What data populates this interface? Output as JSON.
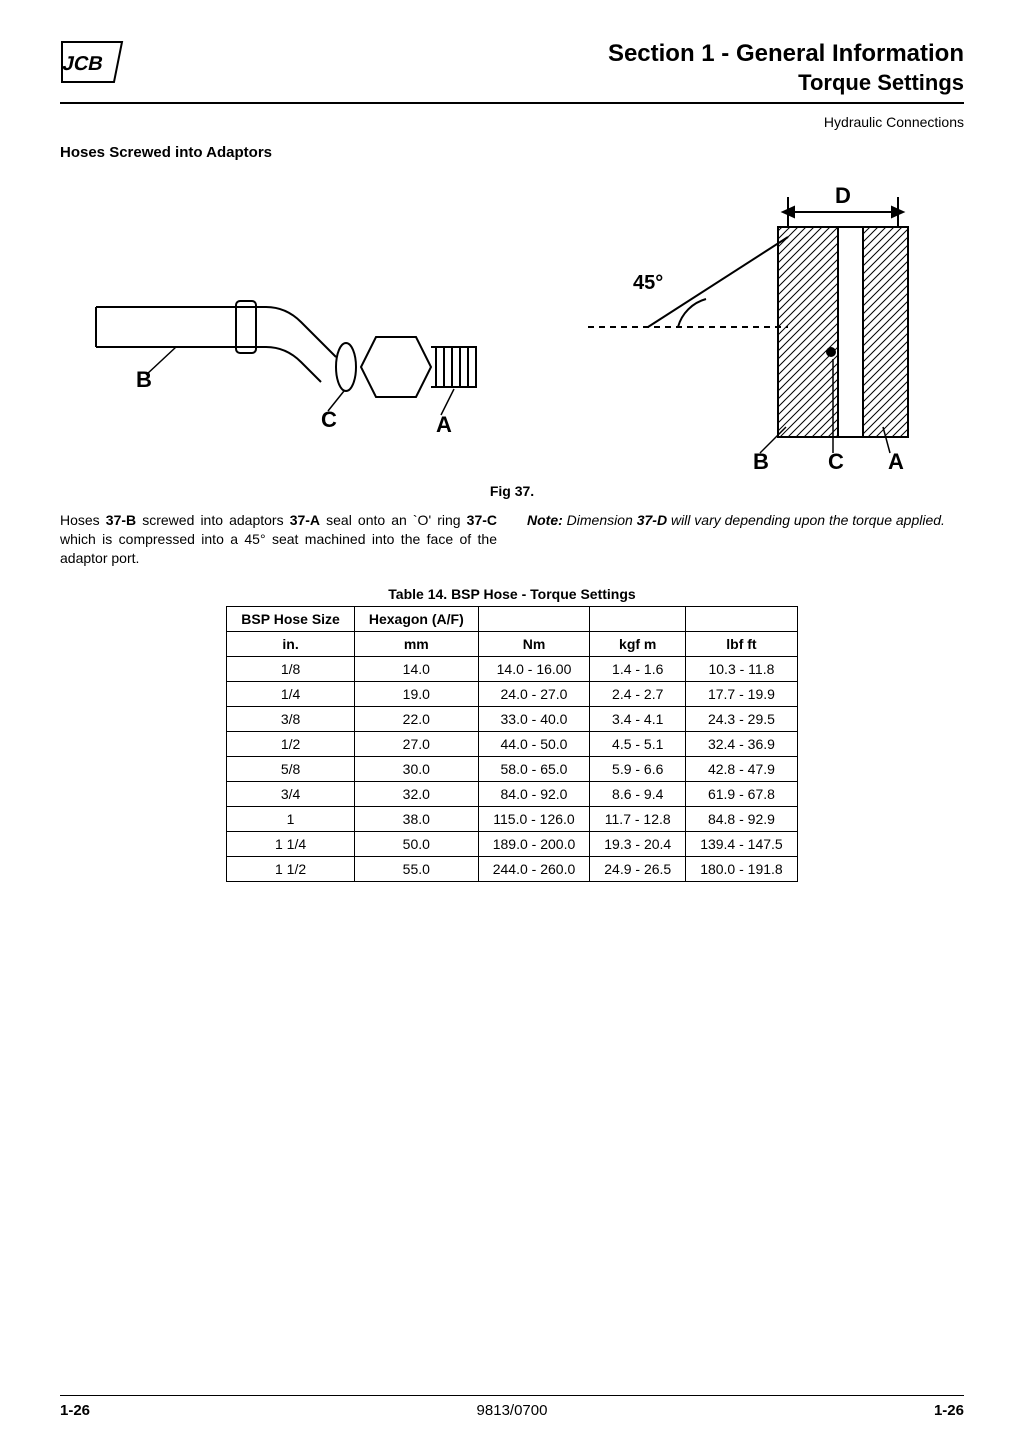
{
  "header": {
    "section_line": "Section 1 - General Information",
    "sub_line": "Torque Settings",
    "tag": "Hydraulic Connections"
  },
  "subsection_title": "Hoses Screwed into Adaptors",
  "figure": {
    "caption": "Fig 37.",
    "left_labels": {
      "A": "A",
      "B": "B",
      "C": "C"
    },
    "right_labels": {
      "A": "A",
      "B": "B",
      "C": "C",
      "D": "D",
      "angle": "45°"
    }
  },
  "para_left_parts": {
    "t1": "Hoses ",
    "b1": "37-B",
    "t2": " screwed into adaptors ",
    "b2": "37-A",
    "t3": " seal onto an `O' ring ",
    "b3": "37-C",
    "t4": " which is compressed into a 45° seat machined into the face of the adaptor port."
  },
  "para_right_parts": {
    "lead": "Note:",
    "t1": " Dimension ",
    "b1": "37-D",
    "t2": " will vary depending upon the torque applied."
  },
  "table": {
    "caption": "Table 14. BSP Hose - Torque Settings",
    "head_row1": [
      "BSP Hose Size",
      "Hexagon (A/F)",
      "",
      "",
      ""
    ],
    "head_row2": [
      "in.",
      "mm",
      "Nm",
      "kgf m",
      "lbf ft"
    ],
    "rows": [
      [
        "1/8",
        "14.0",
        "14.0 - 16.00",
        "1.4 - 1.6",
        "10.3 - 11.8"
      ],
      [
        "1/4",
        "19.0",
        "24.0 - 27.0",
        "2.4 - 2.7",
        "17.7 - 19.9"
      ],
      [
        "3/8",
        "22.0",
        "33.0 - 40.0",
        "3.4 - 4.1",
        "24.3 - 29.5"
      ],
      [
        "1/2",
        "27.0",
        "44.0 - 50.0",
        "4.5 - 5.1",
        "32.4 - 36.9"
      ],
      [
        "5/8",
        "30.0",
        "58.0 - 65.0",
        "5.9 - 6.6",
        "42.8 - 47.9"
      ],
      [
        "3/4",
        "32.0",
        "84.0 - 92.0",
        "8.6 - 9.4",
        "61.9 - 67.8"
      ],
      [
        "1",
        "38.0",
        "115.0 - 126.0",
        "11.7 - 12.8",
        "84.8 - 92.9"
      ],
      [
        "1 1/4",
        "50.0",
        "189.0 - 200.0",
        "19.3 - 20.4",
        "139.4 - 147.5"
      ],
      [
        "1 1/2",
        "55.0",
        "244.0 - 260.0",
        "24.9 - 26.5",
        "180.0 - 191.8"
      ]
    ]
  },
  "footer": {
    "left": "1-26",
    "center": "9813/0700",
    "right": "1-26"
  }
}
